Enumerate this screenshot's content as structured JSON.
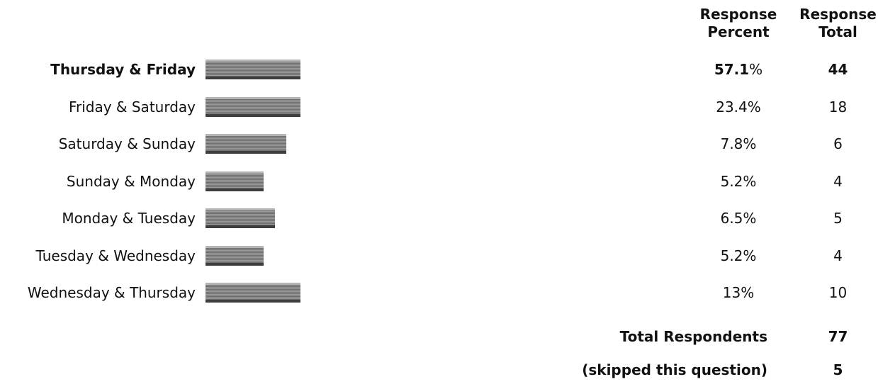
{
  "headers": {
    "percent": [
      "Response",
      "Percent"
    ],
    "total": [
      "Response",
      "Total"
    ]
  },
  "chart_data": {
    "type": "bar",
    "orientation": "horizontal",
    "categories": [
      "Thursday & Friday",
      "Friday & Saturday",
      "Saturday & Sunday",
      "Sunday & Monday",
      "Monday & Tuesday",
      "Tuesday & Wednesday",
      "Wednesday & Thursday"
    ],
    "values": [
      57.1,
      23.4,
      7.8,
      5.2,
      6.5,
      5.2,
      13
    ],
    "percent_labels": [
      "57.1",
      "23.4%",
      "7.8%",
      "5.2%",
      "6.5%",
      "5.2%",
      "13%"
    ],
    "totals": [
      "44",
      "18",
      "6",
      "4",
      "5",
      "4",
      "10"
    ],
    "highlight_index": 0,
    "bar_fill_fraction": [
      1.0,
      1.0,
      0.85,
      0.61,
      0.73,
      0.61,
      1.0
    ],
    "bar_color": "#777777"
  },
  "summary": {
    "respondents_label": "Total Respondents",
    "respondents_value": "77",
    "skipped_label": "(skipped this question)",
    "skipped_value": "5"
  }
}
